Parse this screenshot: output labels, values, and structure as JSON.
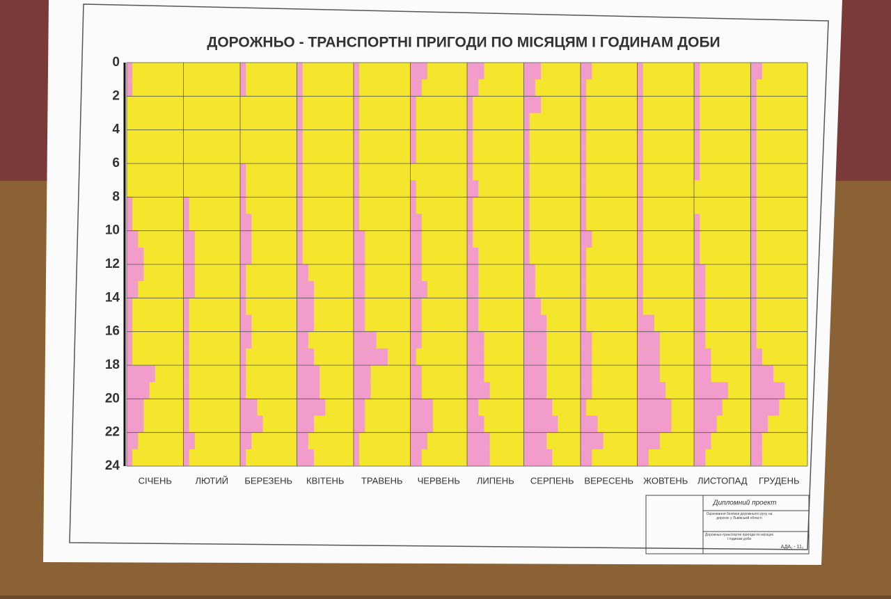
{
  "chart_data": {
    "type": "hour-profile",
    "title": "ДОРОЖНЬО - ТРАНСПОРТНІ ПРИГОДИ ПО МІСЯЦЯМ І ГОДИНАМ ДОБИ",
    "ylim": [
      0,
      24
    ],
    "yticks": [
      0,
      2,
      4,
      6,
      8,
      10,
      12,
      14,
      16,
      18,
      20,
      22,
      24
    ],
    "xlim": [
      0,
      10
    ],
    "grid": true,
    "background_color": "#f3e62c",
    "series": [
      {
        "name": "СІЧЕНЬ",
        "color": "#f19ccb",
        "values": [
          1,
          1,
          0,
          0,
          0,
          0,
          0,
          0,
          1,
          1,
          2,
          3,
          3,
          2,
          1,
          1,
          1,
          1,
          5,
          4,
          3,
          3,
          2,
          1
        ]
      },
      {
        "name": "ЛЮТИЙ",
        "color": "#f19ccb",
        "values": [
          0,
          0,
          0,
          0,
          0,
          0,
          0,
          0,
          1,
          1,
          2,
          2,
          2,
          2,
          1,
          1,
          1,
          1,
          1,
          1,
          1,
          1,
          2,
          1
        ]
      },
      {
        "name": "БЕРЕЗЕНЬ",
        "color": "#f19ccb",
        "values": [
          1,
          1,
          0,
          0,
          0,
          0,
          1,
          1,
          1,
          2,
          2,
          2,
          1,
          1,
          1,
          2,
          2,
          1,
          1,
          1,
          3,
          4,
          2,
          1
        ]
      },
      {
        "name": "КВІТЕНЬ",
        "color": "#f19ccb",
        "values": [
          1,
          1,
          1,
          1,
          1,
          1,
          1,
          1,
          1,
          1,
          1,
          1,
          2,
          3,
          3,
          3,
          2,
          3,
          4,
          4,
          5,
          3,
          2,
          3
        ]
      },
      {
        "name": "ТРАВЕНЬ",
        "color": "#f19ccb",
        "values": [
          1,
          1,
          1,
          1,
          1,
          1,
          1,
          1,
          1,
          1,
          2,
          2,
          2,
          2,
          2,
          2,
          4,
          6,
          3,
          3,
          2,
          2,
          1,
          1
        ]
      },
      {
        "name": "ЧЕРВЕНЬ",
        "color": "#f19ccb",
        "values": [
          3,
          2,
          1,
          1,
          1,
          1,
          0,
          1,
          1,
          2,
          2,
          2,
          2,
          3,
          2,
          2,
          2,
          1,
          2,
          2,
          4,
          4,
          3,
          2
        ]
      },
      {
        "name": "ЛИПЕНЬ",
        "color": "#f19ccb",
        "values": [
          3,
          2,
          1,
          1,
          1,
          1,
          1,
          2,
          1,
          1,
          1,
          2,
          2,
          2,
          2,
          2,
          3,
          3,
          3,
          4,
          2,
          3,
          4,
          4
        ]
      },
      {
        "name": "СЕРПЕНЬ",
        "color": "#f19ccb",
        "values": [
          3,
          2,
          3,
          1,
          1,
          1,
          1,
          1,
          1,
          1,
          1,
          1,
          2,
          2,
          3,
          4,
          4,
          4,
          4,
          4,
          5,
          6,
          4,
          5
        ]
      },
      {
        "name": "ВЕРЕСЕНЬ",
        "color": "#f19ccb",
        "values": [
          2,
          1,
          1,
          1,
          1,
          1,
          1,
          1,
          1,
          1,
          2,
          1,
          1,
          1,
          1,
          1,
          2,
          2,
          2,
          2,
          1,
          3,
          4,
          2
        ]
      },
      {
        "name": "ЖОВТЕНЬ",
        "color": "#f19ccb",
        "values": [
          1,
          1,
          1,
          1,
          1,
          1,
          1,
          1,
          1,
          1,
          1,
          1,
          1,
          1,
          1,
          3,
          4,
          4,
          4,
          5,
          6,
          6,
          4,
          2
        ]
      },
      {
        "name": "ЛИСТОПАД",
        "color": "#f19ccb",
        "values": [
          1,
          1,
          1,
          1,
          1,
          1,
          1,
          0,
          0,
          1,
          1,
          1,
          2,
          2,
          2,
          2,
          2,
          3,
          3,
          6,
          5,
          4,
          3,
          2
        ]
      },
      {
        "name": "ГРУДЕНЬ",
        "color": "#f19ccb",
        "values": [
          2,
          1,
          1,
          1,
          1,
          1,
          1,
          1,
          1,
          1,
          1,
          1,
          1,
          1,
          1,
          1,
          1,
          2,
          4,
          6,
          5,
          3,
          2,
          2
        ]
      }
    ]
  },
  "title_block": {
    "heading": "Дипломний проект",
    "subject": "Оцінювання безпеки дорожнього руху на дорогах у Львівській області",
    "sheet": "Дорожньо-транспортні пригоди по місяцях і годинам доби",
    "code": "АДА₁ - 11₁"
  }
}
